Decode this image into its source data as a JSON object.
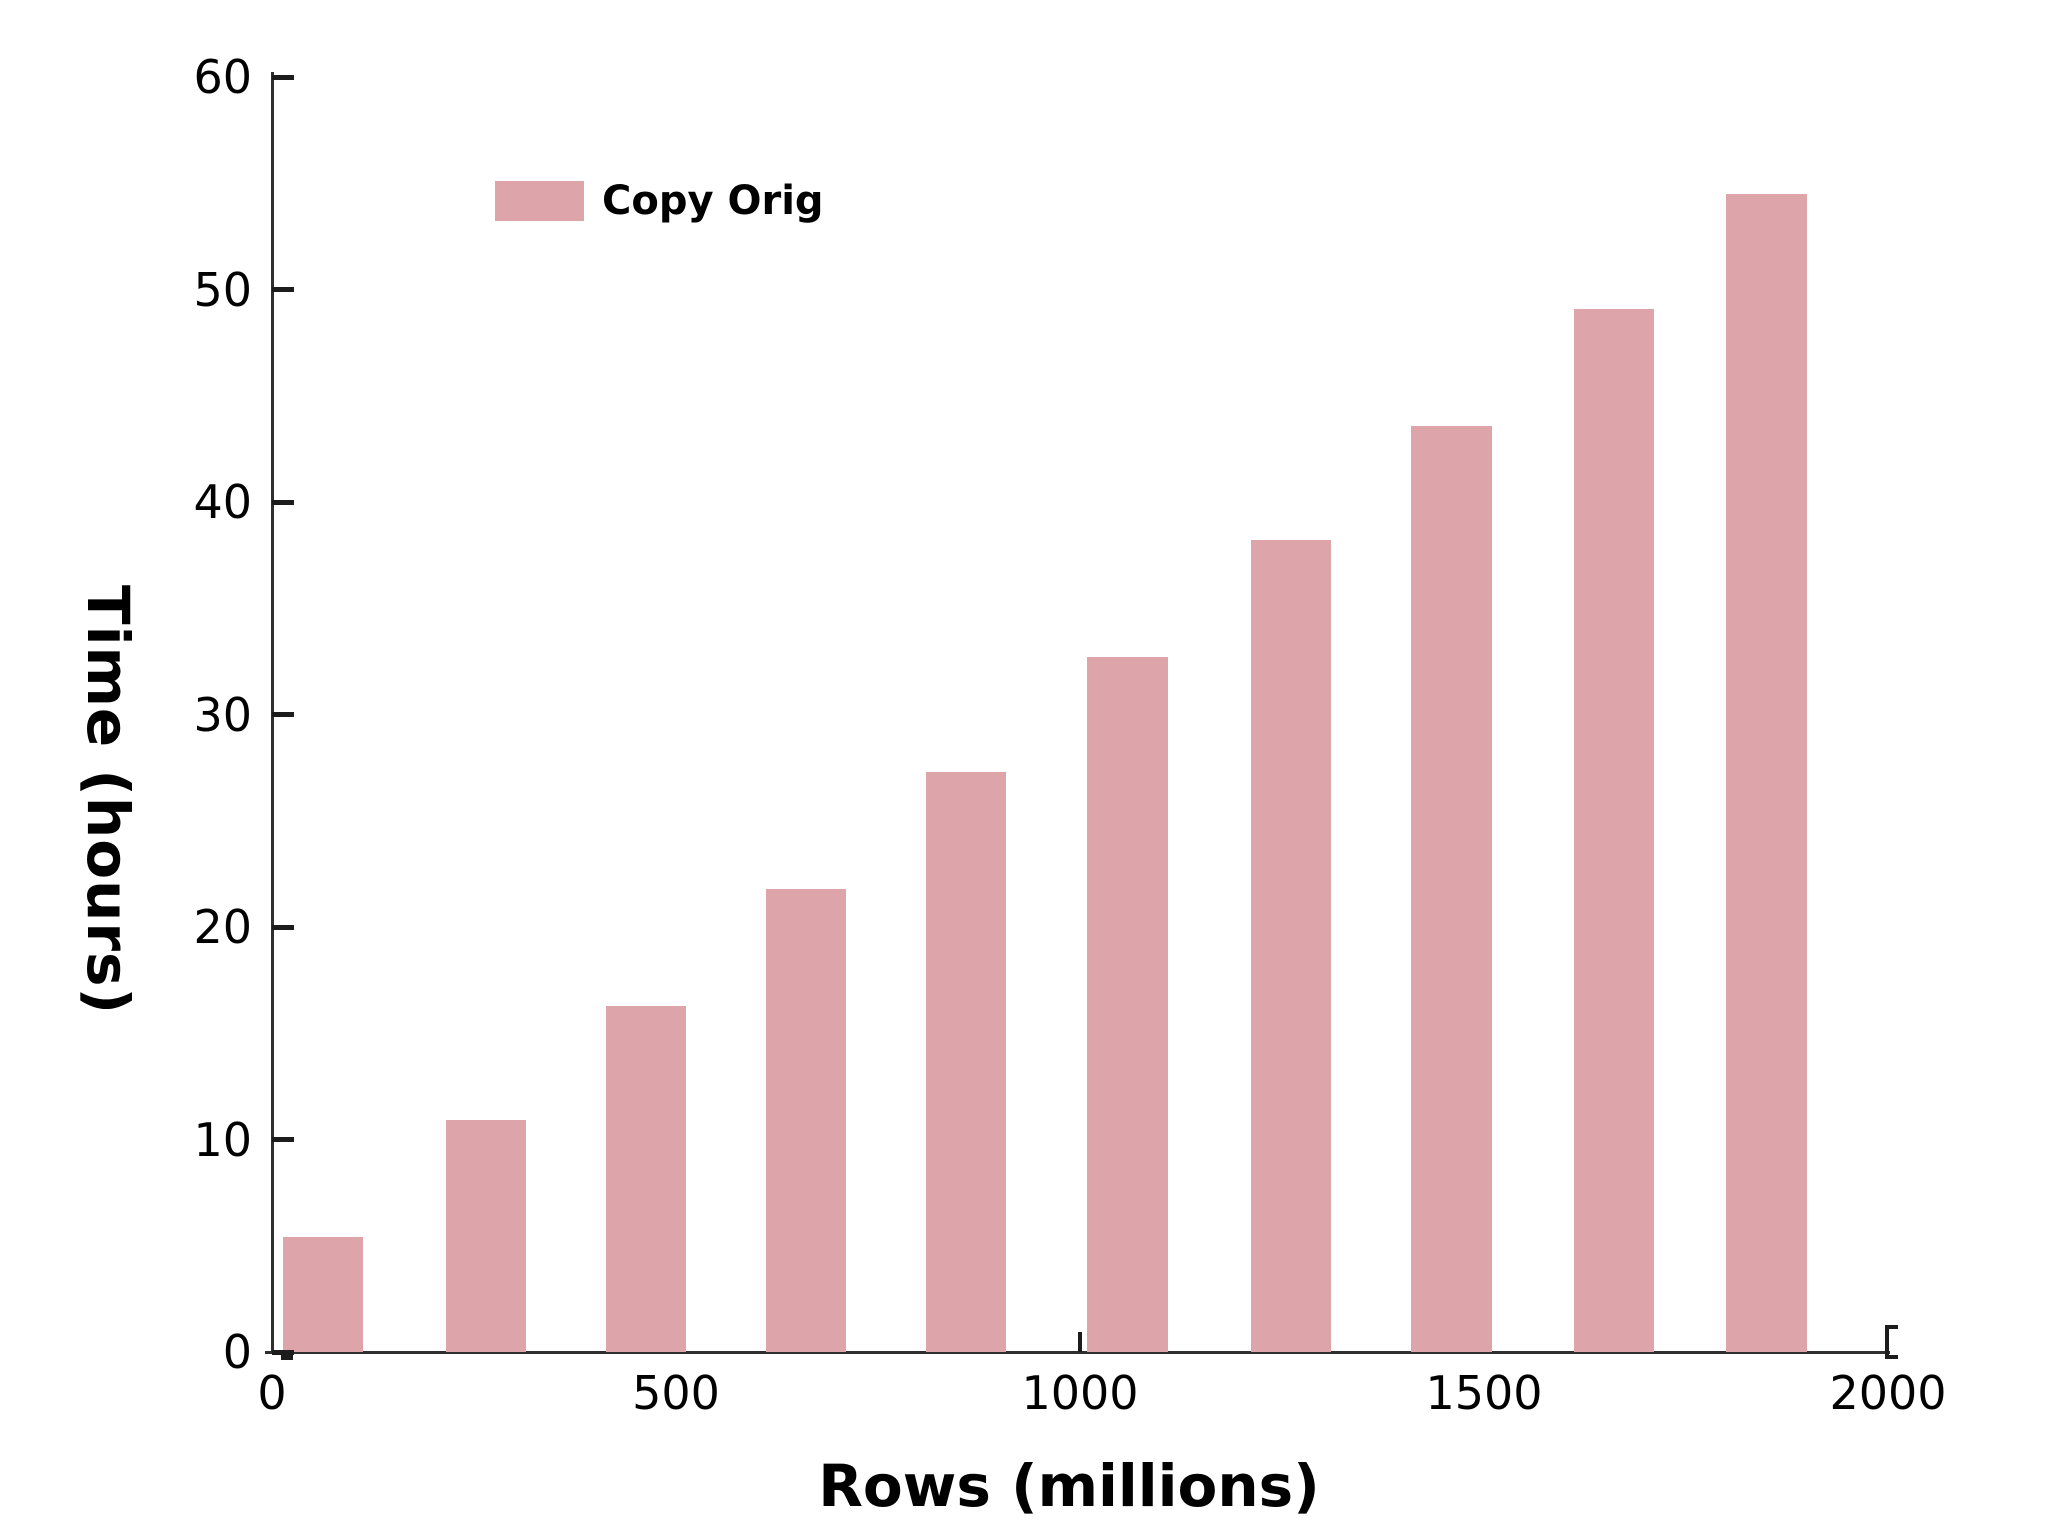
{
  "chart_data": {
    "type": "bar",
    "title": "",
    "xlabel": "Rows (millions)",
    "ylabel": "Time (hours)",
    "xlim": [
      0,
      2000
    ],
    "ylim": [
      0,
      60
    ],
    "xticks": [
      0,
      500,
      1000,
      1500,
      2000
    ],
    "yticks": [
      0,
      10,
      20,
      30,
      40,
      50,
      60
    ],
    "xtick_marks_visible": [
      0,
      1000,
      2000
    ],
    "grid": false,
    "legend_position": "upper-left-inside",
    "bar_color": "#dda4a9",
    "axis_color": "#2f2f2f",
    "text_color": "#000000",
    "bar_width_x_units": 100,
    "series": [
      {
        "name": "Copy Orig",
        "x": [
          63,
          265,
          463,
          661,
          859,
          1059,
          1261,
          1460,
          1661,
          1850
        ],
        "values": [
          5.4,
          10.9,
          16.3,
          21.8,
          27.3,
          32.7,
          38.2,
          43.6,
          49.1,
          54.5
        ]
      }
    ],
    "legend": [
      {
        "label": "Copy Orig",
        "color": "#dda4a9"
      }
    ]
  }
}
